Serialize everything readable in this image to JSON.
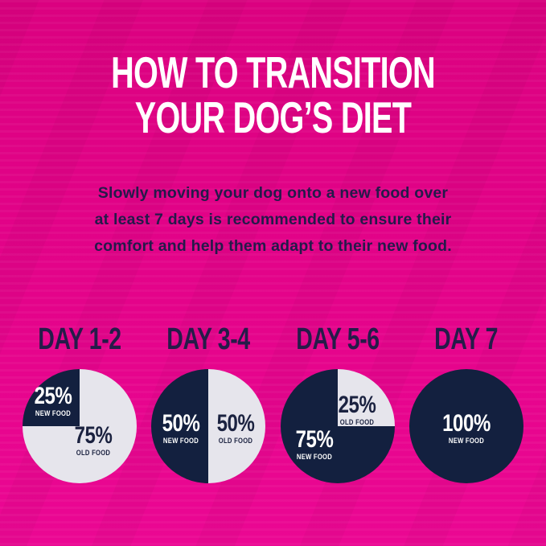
{
  "header": {
    "title_line1": "HOW TO TRANSITION",
    "title_line2": "YOUR DOG’S DIET"
  },
  "subtitle": {
    "lines": [
      "Slowly moving your dog onto a new food over",
      "at least 7 days is recommended to ensure their",
      "comfort and help them adapt to their new food."
    ]
  },
  "colors": {
    "background_pink": "#E4038A",
    "navy": "#13203F",
    "light_gray": "#E6E5EC",
    "title_white": "#FFFFFF",
    "text_navy": "#241A4A"
  },
  "chart_data": [
    {
      "type": "pie",
      "title": "DAY 1-2",
      "series": [
        {
          "name": "NEW FOOD",
          "value": 25,
          "color": "#13203F"
        },
        {
          "name": "OLD FOOD",
          "value": 75,
          "color": "#E6E5EC"
        }
      ],
      "slices": [
        {
          "color": "#E6E5EC",
          "from": 0,
          "to": 270
        },
        {
          "color": "#13203F",
          "from": 270,
          "to": 360
        }
      ],
      "labels": {
        "new": {
          "pct": "25%",
          "text": "NEW FOOD"
        },
        "old": {
          "pct": "75%",
          "text": "OLD FOOD"
        }
      }
    },
    {
      "type": "pie",
      "title": "DAY 3-4",
      "series": [
        {
          "name": "NEW FOOD",
          "value": 50,
          "color": "#13203F"
        },
        {
          "name": "OLD FOOD",
          "value": 50,
          "color": "#E6E5EC"
        }
      ],
      "slices": [
        {
          "color": "#E6E5EC",
          "from": 0,
          "to": 180
        },
        {
          "color": "#13203F",
          "from": 180,
          "to": 360
        }
      ],
      "labels": {
        "new": {
          "pct": "50%",
          "text": "NEW FOOD"
        },
        "old": {
          "pct": "50%",
          "text": "OLD FOOD"
        }
      }
    },
    {
      "type": "pie",
      "title": "DAY 5-6",
      "series": [
        {
          "name": "NEW FOOD",
          "value": 75,
          "color": "#13203F"
        },
        {
          "name": "OLD FOOD",
          "value": 25,
          "color": "#E6E5EC"
        }
      ],
      "slices": [
        {
          "color": "#E6E5EC",
          "from": 0,
          "to": 90
        },
        {
          "color": "#13203F",
          "from": 90,
          "to": 360
        }
      ],
      "labels": {
        "new": {
          "pct": "75%",
          "text": "NEW FOOD"
        },
        "old": {
          "pct": "25%",
          "text": "OLD FOOD"
        }
      }
    },
    {
      "type": "pie",
      "title": "DAY 7",
      "series": [
        {
          "name": "NEW FOOD",
          "value": 100,
          "color": "#13203F"
        }
      ],
      "slices": [
        {
          "color": "#13203F",
          "from": 0,
          "to": 360
        }
      ],
      "labels": {
        "new": {
          "pct": "100%",
          "text": "NEW FOOD"
        }
      }
    }
  ]
}
